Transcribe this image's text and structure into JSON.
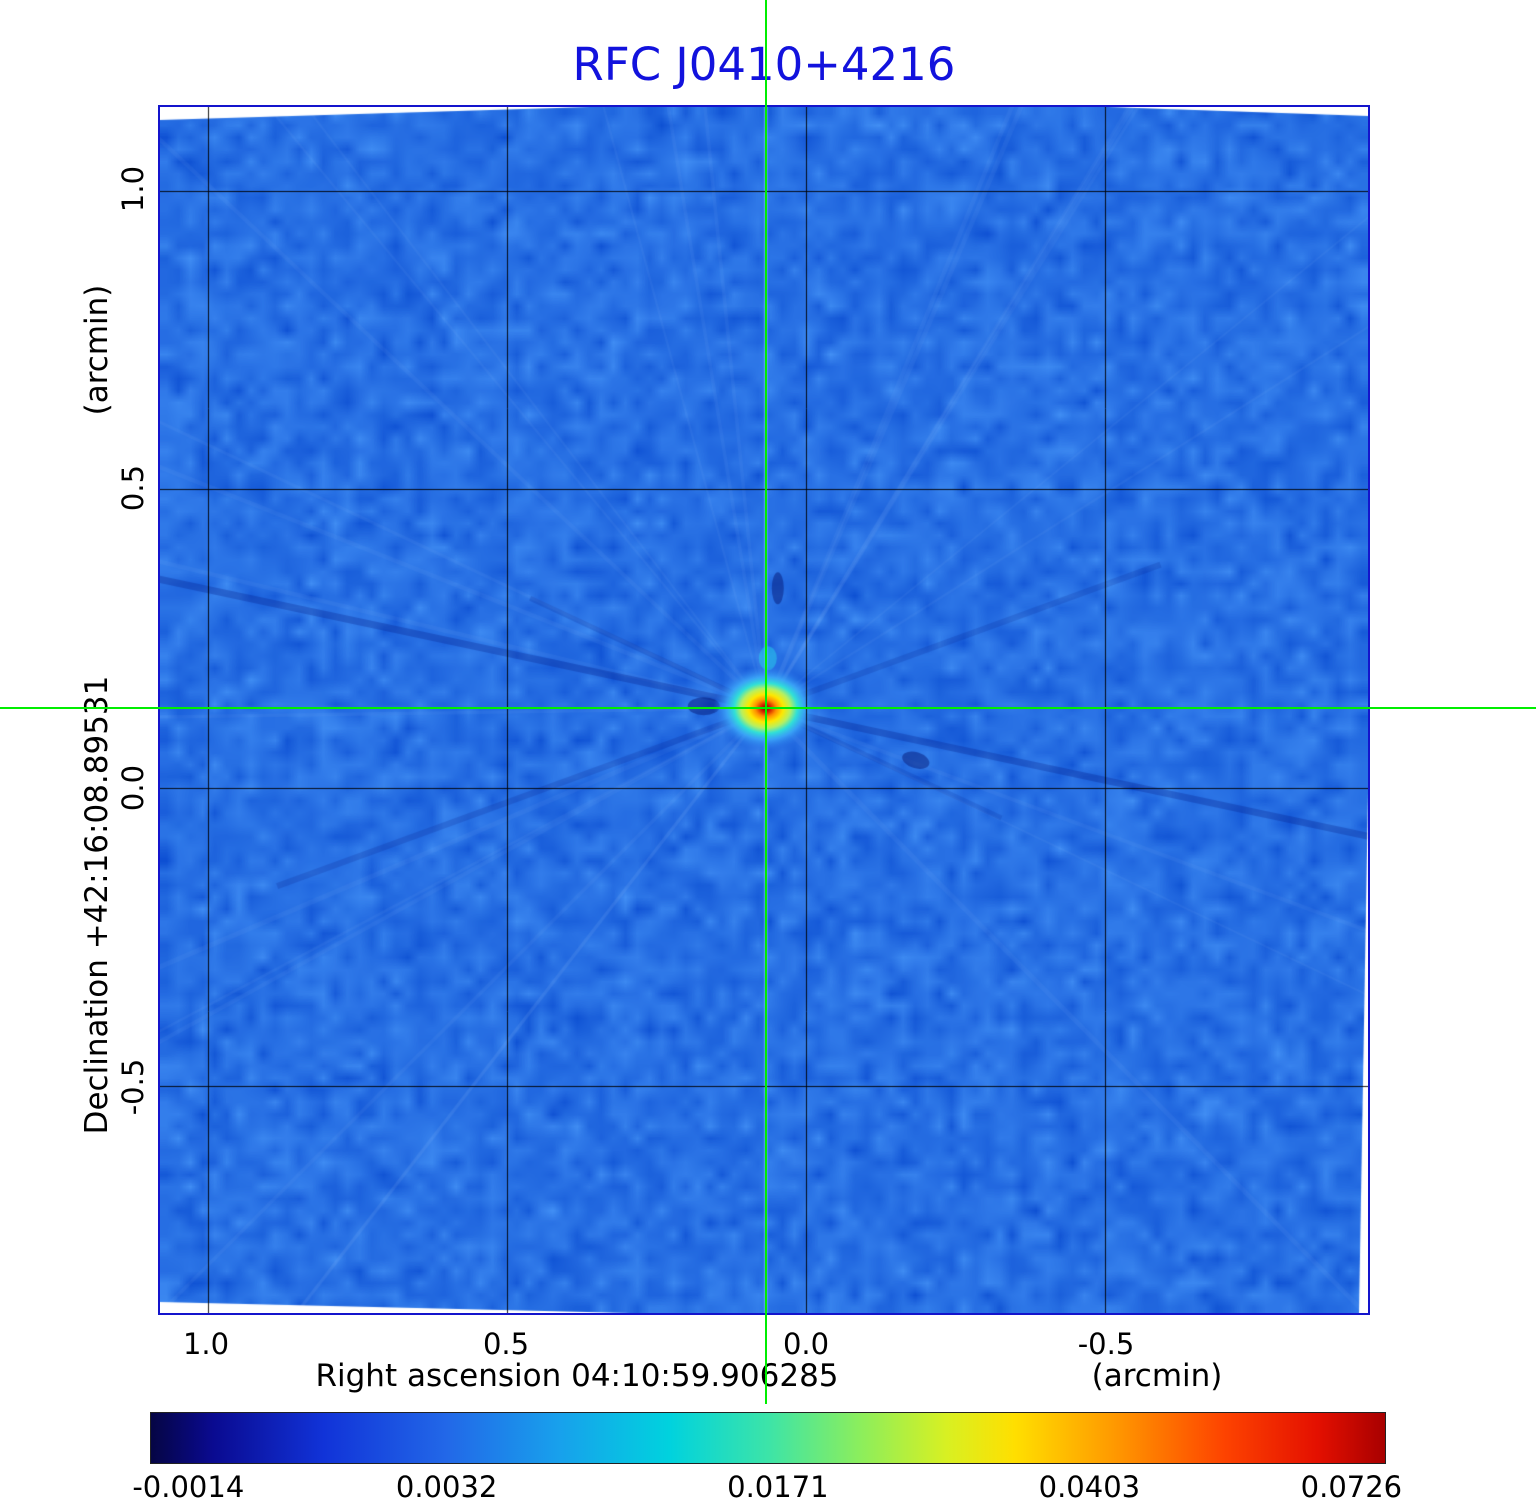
{
  "figure": {
    "title": "RFC J0410+4216",
    "title_color": "#1212dd",
    "frame_color": "#1414cc",
    "crosshair_color": "#00ee00"
  },
  "axes": {
    "y_title": "Declination  +42:16:08.89531",
    "y_unit": "(arcmin)",
    "x_title": "Right ascension  04:10:59.906285",
    "x_unit": "(arcmin)",
    "x_tick_labels": [
      "1.0",
      "0.5",
      "0.0",
      "-0.5"
    ],
    "y_tick_labels": [
      "1.0",
      "0.5",
      "0.0",
      "-0.5"
    ]
  },
  "colorbar_labels": [
    "-0.0014",
    "0.0032",
    "0.0171",
    "0.0403",
    "0.0726"
  ],
  "chart_data": {
    "type": "heatmap",
    "title": "RFC J0410+4216",
    "xlabel": "Right ascension 04:10:59.906285 (arcmin)",
    "ylabel": "Declination +42:16:08.89531 (arcmin)",
    "x_ticks": [
      1.0,
      0.5,
      0.0,
      -0.5
    ],
    "y_ticks": [
      1.0,
      0.5,
      0.0,
      -0.5
    ],
    "x_range": [
      1.08,
      -0.94
    ],
    "y_range": [
      1.14,
      -0.88
    ],
    "grid": true,
    "legend": "colorbar bottom",
    "source": {
      "x_arcmin": 0.067,
      "y_arcmin": 0.133
    },
    "crosshair": {
      "x": 0.067,
      "y": 0.133
    },
    "colorbar": {
      "tick_values": [
        -0.0014,
        0.0032,
        0.0171,
        0.0403,
        0.0726
      ],
      "min": -0.0014,
      "max": 0.0726
    },
    "colormap": [
      {
        "pos": 0.0,
        "color": "#050544"
      },
      {
        "pos": 0.05,
        "color": "#0a0a90"
      },
      {
        "pos": 0.14,
        "color": "#1133d8"
      },
      {
        "pos": 0.24,
        "color": "#2268e8"
      },
      {
        "pos": 0.33,
        "color": "#18a0ec"
      },
      {
        "pos": 0.42,
        "color": "#00d2de"
      },
      {
        "pos": 0.5,
        "color": "#3ce4a8"
      },
      {
        "pos": 0.575,
        "color": "#8cee5c"
      },
      {
        "pos": 0.645,
        "color": "#d8f022"
      },
      {
        "pos": 0.7,
        "color": "#ffdf00"
      },
      {
        "pos": 0.785,
        "color": "#ff9500"
      },
      {
        "pos": 0.87,
        "color": "#fd4300"
      },
      {
        "pos": 0.945,
        "color": "#e41000"
      },
      {
        "pos": 1.0,
        "color": "#a80000"
      }
    ]
  }
}
